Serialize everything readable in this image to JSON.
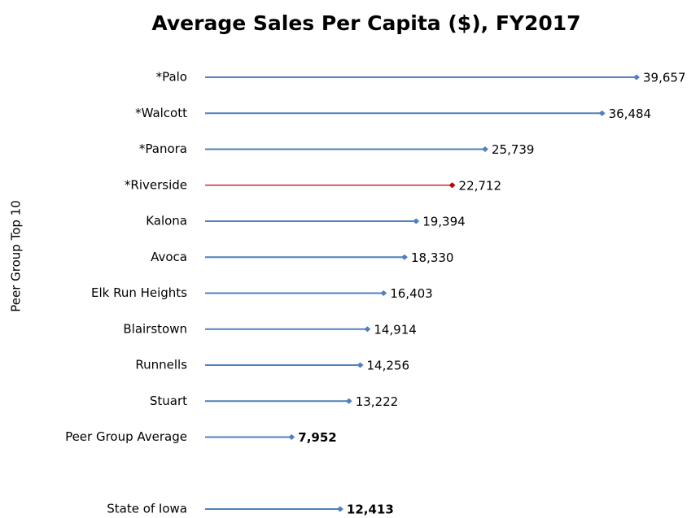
{
  "chart_data": {
    "type": "bar",
    "orientation": "horizontal",
    "title": "Average Sales Per Capita ($), FY2017",
    "y_label": "Peer Group Top 10",
    "categories": [
      "*Palo",
      "*Walcott",
      "*Panora",
      "*Riverside",
      "Kalona",
      "Avoca",
      "Elk Run Heights",
      "Blairstown",
      "Runnells",
      "Stuart",
      "Peer Group Average",
      null,
      "State of Iowa"
    ],
    "values": [
      39657,
      36484,
      25739,
      22712,
      19394,
      18330,
      16403,
      14914,
      14256,
      13222,
      7952,
      null,
      12413
    ],
    "value_labels": [
      "39,657",
      "36,484",
      "25,739",
      "22,712",
      "19,394",
      "18,330",
      "16,403",
      "14,914",
      "14,256",
      "13,222",
      "7,952",
      null,
      "12,413"
    ],
    "colors": [
      "#4f81bd",
      "#4f81bd",
      "#4f81bd",
      "#c00000",
      "#4f81bd",
      "#4f81bd",
      "#4f81bd",
      "#4f81bd",
      "#4f81bd",
      "#4f81bd",
      "#4f81bd",
      null,
      "#4f81bd"
    ]
  }
}
